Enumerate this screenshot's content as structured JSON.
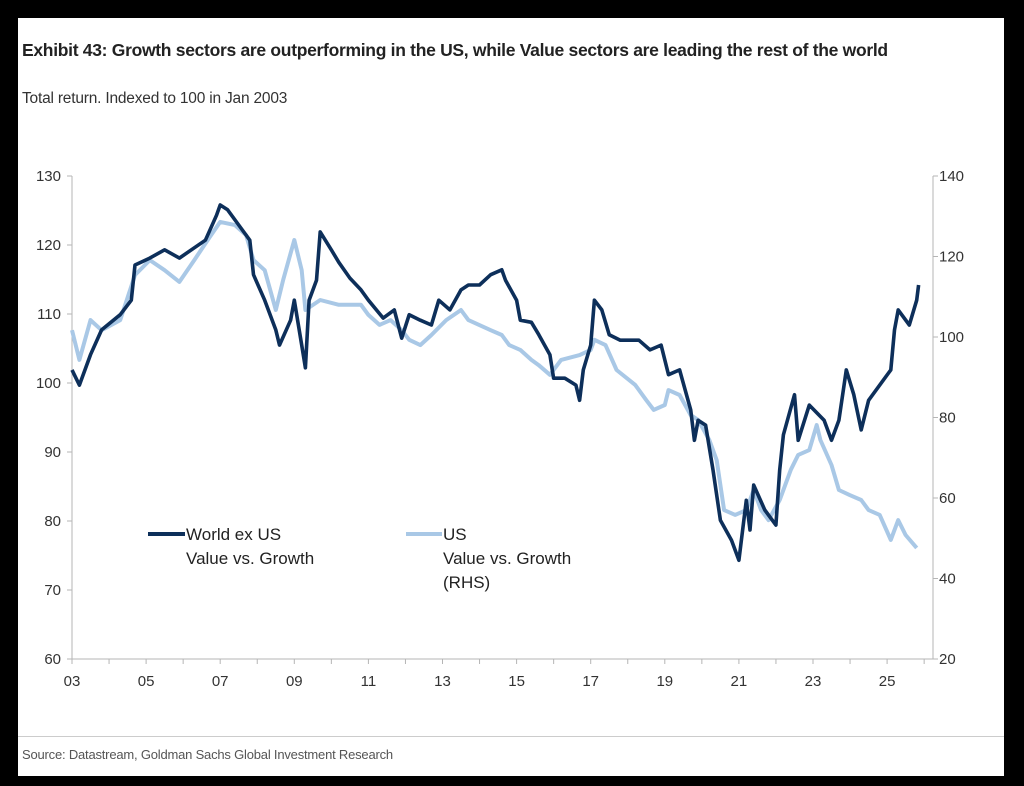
{
  "title": "Exhibit 43: Growth sectors are outperforming in the US, while Value sectors are leading the rest of the world",
  "subtitle": "Total return. Indexed to 100 in Jan 2003",
  "source": "Source: Datastream, Goldman Sachs Global Investment Research",
  "chart_data": {
    "type": "line",
    "x_ticks": [
      "03",
      "05",
      "07",
      "09",
      "11",
      "13",
      "15",
      "17",
      "19",
      "21",
      "23",
      "25"
    ],
    "x_tick_years": [
      2003,
      2005,
      2007,
      2009,
      2011,
      2013,
      2015,
      2017,
      2019,
      2021,
      2023,
      2025
    ],
    "xlim": [
      2003,
      2026.2
    ],
    "y_left": {
      "ylim": [
        60,
        130
      ],
      "ticks": [
        "60",
        "70",
        "80",
        "90",
        "100",
        "110",
        "120",
        "130"
      ]
    },
    "y_right": {
      "ylim": [
        20,
        140
      ],
      "ticks": [
        "20",
        "40",
        "60",
        "80",
        "100",
        "120",
        "140"
      ]
    },
    "grid": false,
    "legend_placement": "bottom-left inside",
    "series": [
      {
        "name": "World ex US Value vs. Growth",
        "legend_lines": [
          "World ex US",
          "Value vs. Growth"
        ],
        "axis": "left",
        "color": "#0d2f5a",
        "x": [
          2003.0,
          2003.2,
          2003.5,
          2003.8,
          2004.3,
          2004.6,
          2004.7,
          2005.1,
          2005.5,
          2005.9,
          2006.3,
          2006.6,
          2006.9,
          2007.0,
          2007.2,
          2007.5,
          2007.8,
          2007.9,
          2008.2,
          2008.5,
          2008.6,
          2008.9,
          2009.0,
          2009.2,
          2009.3,
          2009.4,
          2009.6,
          2009.7,
          2010.0,
          2010.2,
          2010.5,
          2010.8,
          2011.0,
          2011.4,
          2011.7,
          2011.9,
          2012.1,
          2012.4,
          2012.7,
          2012.9,
          2013.2,
          2013.5,
          2013.7,
          2014.0,
          2014.3,
          2014.6,
          2014.7,
          2015.0,
          2015.1,
          2015.4,
          2015.6,
          2015.9,
          2016.0,
          2016.3,
          2016.6,
          2016.7,
          2016.8,
          2017.0,
          2017.1,
          2017.3,
          2017.5,
          2017.8,
          2018.3,
          2018.6,
          2018.9,
          2019.1,
          2019.4,
          2019.7,
          2019.8,
          2019.9,
          2020.1,
          2020.3,
          2020.5,
          2020.8,
          2021.0,
          2021.2,
          2021.3,
          2021.4,
          2021.7,
          2022.0,
          2022.1,
          2022.2,
          2022.5,
          2022.6,
          2022.9,
          2023.3,
          2023.5,
          2023.7,
          2023.9,
          2024.1,
          2024.3,
          2024.5,
          2025.1,
          2025.2,
          2025.3,
          2025.6,
          2025.8,
          2025.85
        ],
        "y": [
          101.9,
          99.7,
          104.1,
          107.7,
          109.9,
          112.0,
          117.1,
          118.1,
          119.3,
          118.1,
          119.6,
          120.7,
          124.3,
          125.8,
          125.1,
          122.9,
          120.7,
          115.7,
          112.0,
          107.7,
          105.5,
          109.1,
          112.0,
          105.5,
          102.2,
          112.0,
          114.9,
          121.9,
          119.3,
          117.5,
          115.2,
          113.5,
          112.0,
          109.4,
          110.6,
          106.5,
          109.9,
          109.1,
          108.4,
          112.0,
          110.6,
          113.5,
          114.2,
          114.2,
          115.7,
          116.4,
          114.9,
          112.0,
          109.1,
          108.8,
          107.0,
          104.1,
          100.7,
          100.7,
          99.7,
          97.5,
          101.9,
          105.5,
          112.0,
          110.6,
          107.0,
          106.2,
          106.2,
          104.8,
          105.5,
          101.2,
          101.9,
          96.1,
          91.7,
          94.6,
          93.9,
          87.4,
          80.1,
          77.2,
          74.3,
          83.0,
          78.7,
          85.2,
          81.6,
          79.4,
          87.4,
          92.5,
          98.3,
          91.7,
          96.8,
          94.6,
          91.7,
          94.6,
          101.9,
          98.3,
          93.2,
          97.5,
          101.9,
          107.7,
          110.6,
          108.4,
          112.0,
          114.2
        ]
      },
      {
        "name": "US Value vs. Growth (RHS)",
        "legend_lines": [
          "US",
          "Value vs. Growth",
          "(RHS)"
        ],
        "axis": "right",
        "color": "#a9c8e6",
        "x": [
          2003.0,
          2003.2,
          2003.5,
          2003.8,
          2004.3,
          2004.7,
          2005.1,
          2005.5,
          2005.9,
          2006.3,
          2006.7,
          2007.0,
          2007.4,
          2007.7,
          2007.9,
          2008.2,
          2008.5,
          2008.7,
          2009.0,
          2009.2,
          2009.3,
          2009.7,
          2010.2,
          2010.8,
          2011.0,
          2011.3,
          2011.6,
          2011.9,
          2012.1,
          2012.4,
          2012.7,
          2013.1,
          2013.5,
          2013.7,
          2014.3,
          2014.6,
          2014.8,
          2015.1,
          2015.4,
          2015.6,
          2015.9,
          2016.2,
          2016.7,
          2017.0,
          2017.1,
          2017.4,
          2017.7,
          2018.2,
          2018.5,
          2018.7,
          2019.0,
          2019.1,
          2019.4,
          2019.7,
          2019.9,
          2020.2,
          2020.4,
          2020.6,
          2020.9,
          2021.2,
          2021.4,
          2021.6,
          2021.8,
          2022.1,
          2022.4,
          2022.6,
          2022.9,
          2023.1,
          2023.2,
          2023.5,
          2023.7,
          2024.0,
          2024.3,
          2024.5,
          2024.8,
          2025.1,
          2025.3,
          2025.5,
          2025.8
        ],
        "y": [
          101.7,
          94.3,
          104.2,
          101.7,
          104.2,
          115.4,
          119.1,
          116.6,
          113.7,
          119.1,
          124.6,
          128.6,
          127.8,
          125.3,
          119.1,
          116.6,
          106.7,
          114.2,
          124.1,
          116.6,
          106.7,
          109.2,
          108.0,
          108.0,
          105.5,
          103.0,
          104.2,
          101.7,
          99.3,
          98.0,
          100.5,
          104.2,
          106.7,
          104.2,
          101.7,
          100.5,
          98.0,
          96.8,
          94.3,
          93.0,
          90.6,
          94.3,
          95.5,
          96.8,
          99.3,
          98.0,
          91.8,
          88.1,
          84.3,
          81.9,
          83.1,
          86.8,
          85.6,
          80.6,
          79.4,
          74.4,
          69.4,
          57.0,
          55.8,
          57.0,
          62.0,
          57.0,
          54.5,
          59.5,
          67.0,
          70.7,
          71.9,
          78.1,
          74.4,
          68.2,
          62.0,
          60.7,
          59.5,
          57.0,
          55.8,
          49.6,
          54.5,
          50.8,
          47.6
        ]
      }
    ]
  }
}
